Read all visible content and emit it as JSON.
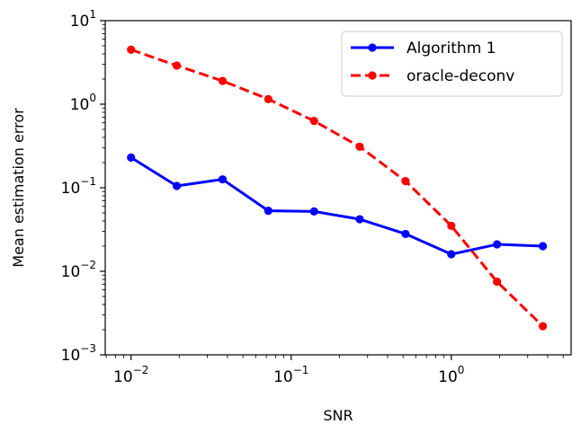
{
  "chart_data": {
    "type": "line",
    "title": "",
    "xlabel": "SNR",
    "ylabel": "Mean estimation error",
    "xscale": "log",
    "yscale": "log",
    "xlim": [
      0.0069,
      5.6
    ],
    "ylim": [
      0.001,
      10
    ],
    "x_ticks": [
      {
        "value": 0.01,
        "base": "10",
        "exp": "−2"
      },
      {
        "value": 0.1,
        "base": "10",
        "exp": "−1"
      },
      {
        "value": 1,
        "base": "10",
        "exp": "0"
      }
    ],
    "y_ticks": [
      {
        "value": 0.001,
        "base": "10",
        "exp": "−3"
      },
      {
        "value": 0.01,
        "base": "10",
        "exp": "−2"
      },
      {
        "value": 0.1,
        "base": "10",
        "exp": "−1"
      },
      {
        "value": 1,
        "base": "10",
        "exp": "0"
      },
      {
        "value": 10,
        "base": "10",
        "exp": "1"
      }
    ],
    "grid": false,
    "legend_position": "top-right",
    "series": [
      {
        "name": "Algorithm 1",
        "color": "#0000ff",
        "linestyle": "solid",
        "marker": "circle",
        "x": [
          0.01,
          0.0193,
          0.0373,
          0.072,
          0.139,
          0.268,
          0.518,
          1.0,
          1.93,
          3.73
        ],
        "y": [
          0.23,
          0.105,
          0.126,
          0.053,
          0.052,
          0.042,
          0.028,
          0.016,
          0.021,
          0.02
        ]
      },
      {
        "name": "oracle-deconv",
        "color": "#ff0000",
        "linestyle": "dashed",
        "marker": "circle",
        "x": [
          0.01,
          0.0193,
          0.0373,
          0.072,
          0.139,
          0.268,
          0.518,
          1.0,
          1.93,
          3.73
        ],
        "y": [
          4.5,
          2.9,
          1.9,
          1.15,
          0.63,
          0.31,
          0.12,
          0.035,
          0.0075,
          0.0022
        ]
      }
    ]
  }
}
